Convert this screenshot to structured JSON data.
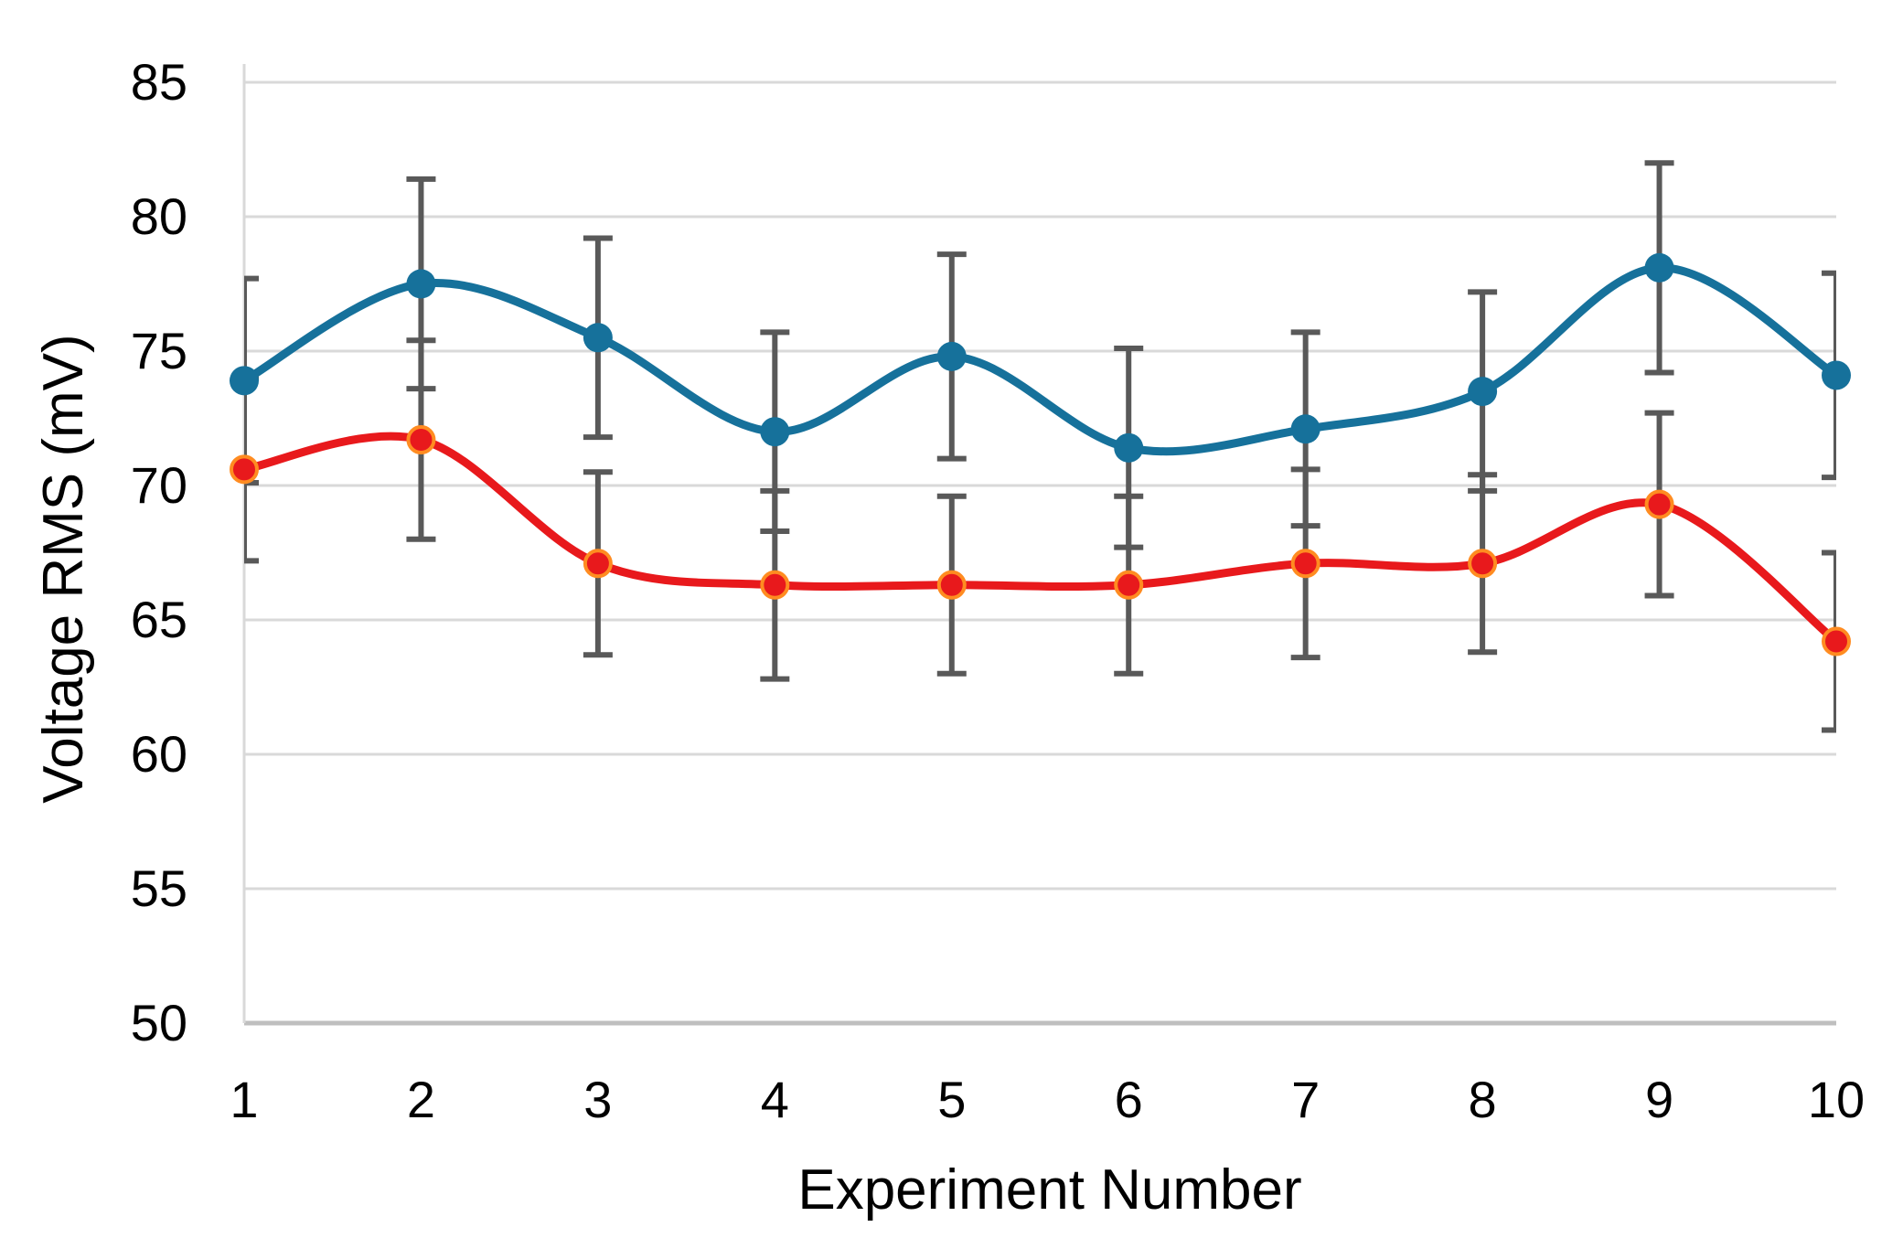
{
  "chart_data": {
    "type": "line",
    "title": "",
    "xlabel": "Experiment Number",
    "ylabel": "Voltage RMS (mV)",
    "categories": [
      "1",
      "2",
      "3",
      "4",
      "5",
      "6",
      "7",
      "8",
      "9",
      "10"
    ],
    "ylim": [
      50,
      85
    ],
    "yticks": [
      85,
      80,
      75,
      70,
      65,
      60,
      55,
      50
    ],
    "grid": "horizontal",
    "legend_position": "none",
    "line_style": "smooth",
    "series": [
      {
        "name": "blue-series",
        "color": "#16719b",
        "marker": "circle",
        "values": [
          73.9,
          77.5,
          75.5,
          72.0,
          74.8,
          71.4,
          72.1,
          73.5,
          78.1,
          74.1
        ],
        "errors": [
          3.8,
          3.9,
          3.7,
          3.7,
          3.8,
          3.7,
          3.6,
          3.7,
          3.9,
          3.8
        ]
      },
      {
        "name": "red-series",
        "color": "#e8191c",
        "marker": "circle",
        "marker_outline": "#ff8c21",
        "values": [
          70.6,
          71.7,
          67.1,
          66.3,
          66.3,
          66.3,
          67.1,
          67.1,
          69.3,
          64.2
        ],
        "errors": [
          3.4,
          3.7,
          3.4,
          3.5,
          3.3,
          3.3,
          3.5,
          3.3,
          3.4,
          3.3
        ]
      }
    ],
    "colors": {
      "background": "#ffffff",
      "gridline": "#d9d9d9",
      "axis_line": "#bfbfbf",
      "error_bar": "#595959",
      "text": "#000000"
    }
  }
}
